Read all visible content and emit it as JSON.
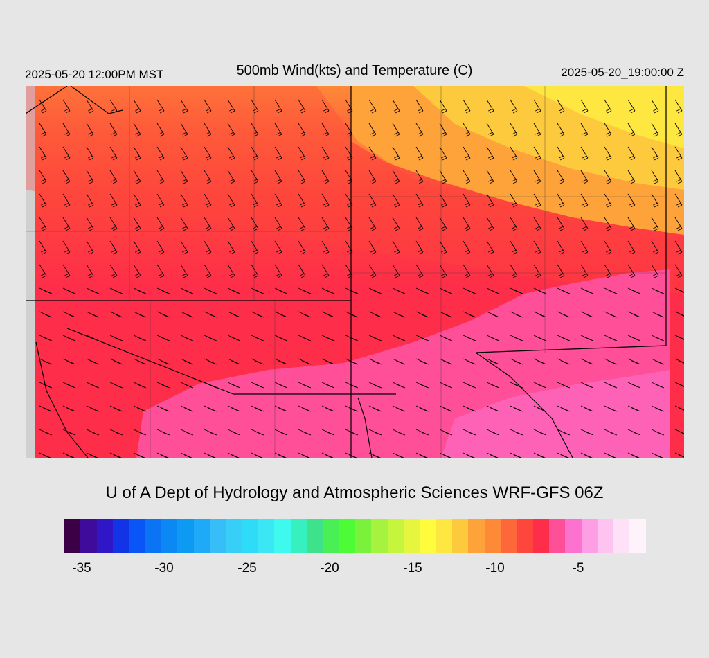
{
  "header": {
    "left": "2025-05-20 12:00PM MST",
    "title": "500mb Wind(kts) and Temperature (C)",
    "right": "2025-05-20_19:00:00 Z"
  },
  "credit": "U of A Dept of Hydrology and Atmospheric Sciences WRF-GFS 06Z",
  "colorbar": {
    "colors": [
      "#3b0045",
      "#3e0b9b",
      "#2f17c8",
      "#1233e6",
      "#0a55f5",
      "#0a74f5",
      "#0b88f3",
      "#0c9af2",
      "#1eaaf6",
      "#37bdf8",
      "#37cff8",
      "#2fdcf8",
      "#3be6f5",
      "#3ef9ee",
      "#36f0c0",
      "#3de28a",
      "#49f055",
      "#4efb37",
      "#7af23c",
      "#a5f33e",
      "#c6f53e",
      "#e6f53e",
      "#fffb3d",
      "#fde740",
      "#fdc93d",
      "#fea33a",
      "#fe8a38",
      "#fe673a",
      "#fe463c",
      "#fe2d4a",
      "#fe4f98",
      "#fe72cf",
      "#fe9ee5",
      "#fec3f0",
      "#fee1f7",
      "#fef3fb"
    ],
    "ticks": [
      "-35",
      "-30",
      "-25",
      "-20",
      "-15",
      "-10",
      "-5"
    ]
  }
}
